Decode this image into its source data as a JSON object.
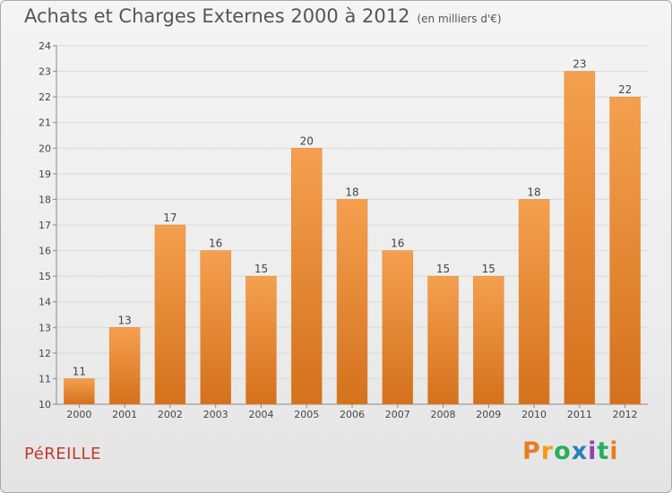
{
  "title": "Achats et Charges Externes 2000 à 2012",
  "subtitle": "(en milliers d'€)",
  "commune": "PéREILLE",
  "logo": {
    "letters": [
      "P",
      "r",
      "o",
      "x",
      "i",
      "t",
      "i"
    ],
    "colors": [
      "#e67e22",
      "#f39c12",
      "#27ae60",
      "#2980b9",
      "#8e44ad",
      "#27ae60",
      "#e67e22"
    ]
  },
  "colors": {
    "bar_top": "#f5a04f",
    "bar_bottom": "#d4711c",
    "grid": "#d9d9d9"
  },
  "chart_data": {
    "type": "bar",
    "categories": [
      "2000",
      "2001",
      "2002",
      "2003",
      "2004",
      "2005",
      "2006",
      "2007",
      "2008",
      "2009",
      "2010",
      "2011",
      "2012"
    ],
    "values": [
      11,
      13,
      17,
      16,
      15,
      20,
      18,
      16,
      15,
      15,
      18,
      23,
      22
    ],
    "ylim": [
      10,
      24
    ],
    "yticks": [
      10,
      11,
      12,
      13,
      14,
      15,
      16,
      17,
      18,
      19,
      20,
      21,
      22,
      23,
      24
    ],
    "grid": true,
    "xlabel": "",
    "ylabel": ""
  }
}
